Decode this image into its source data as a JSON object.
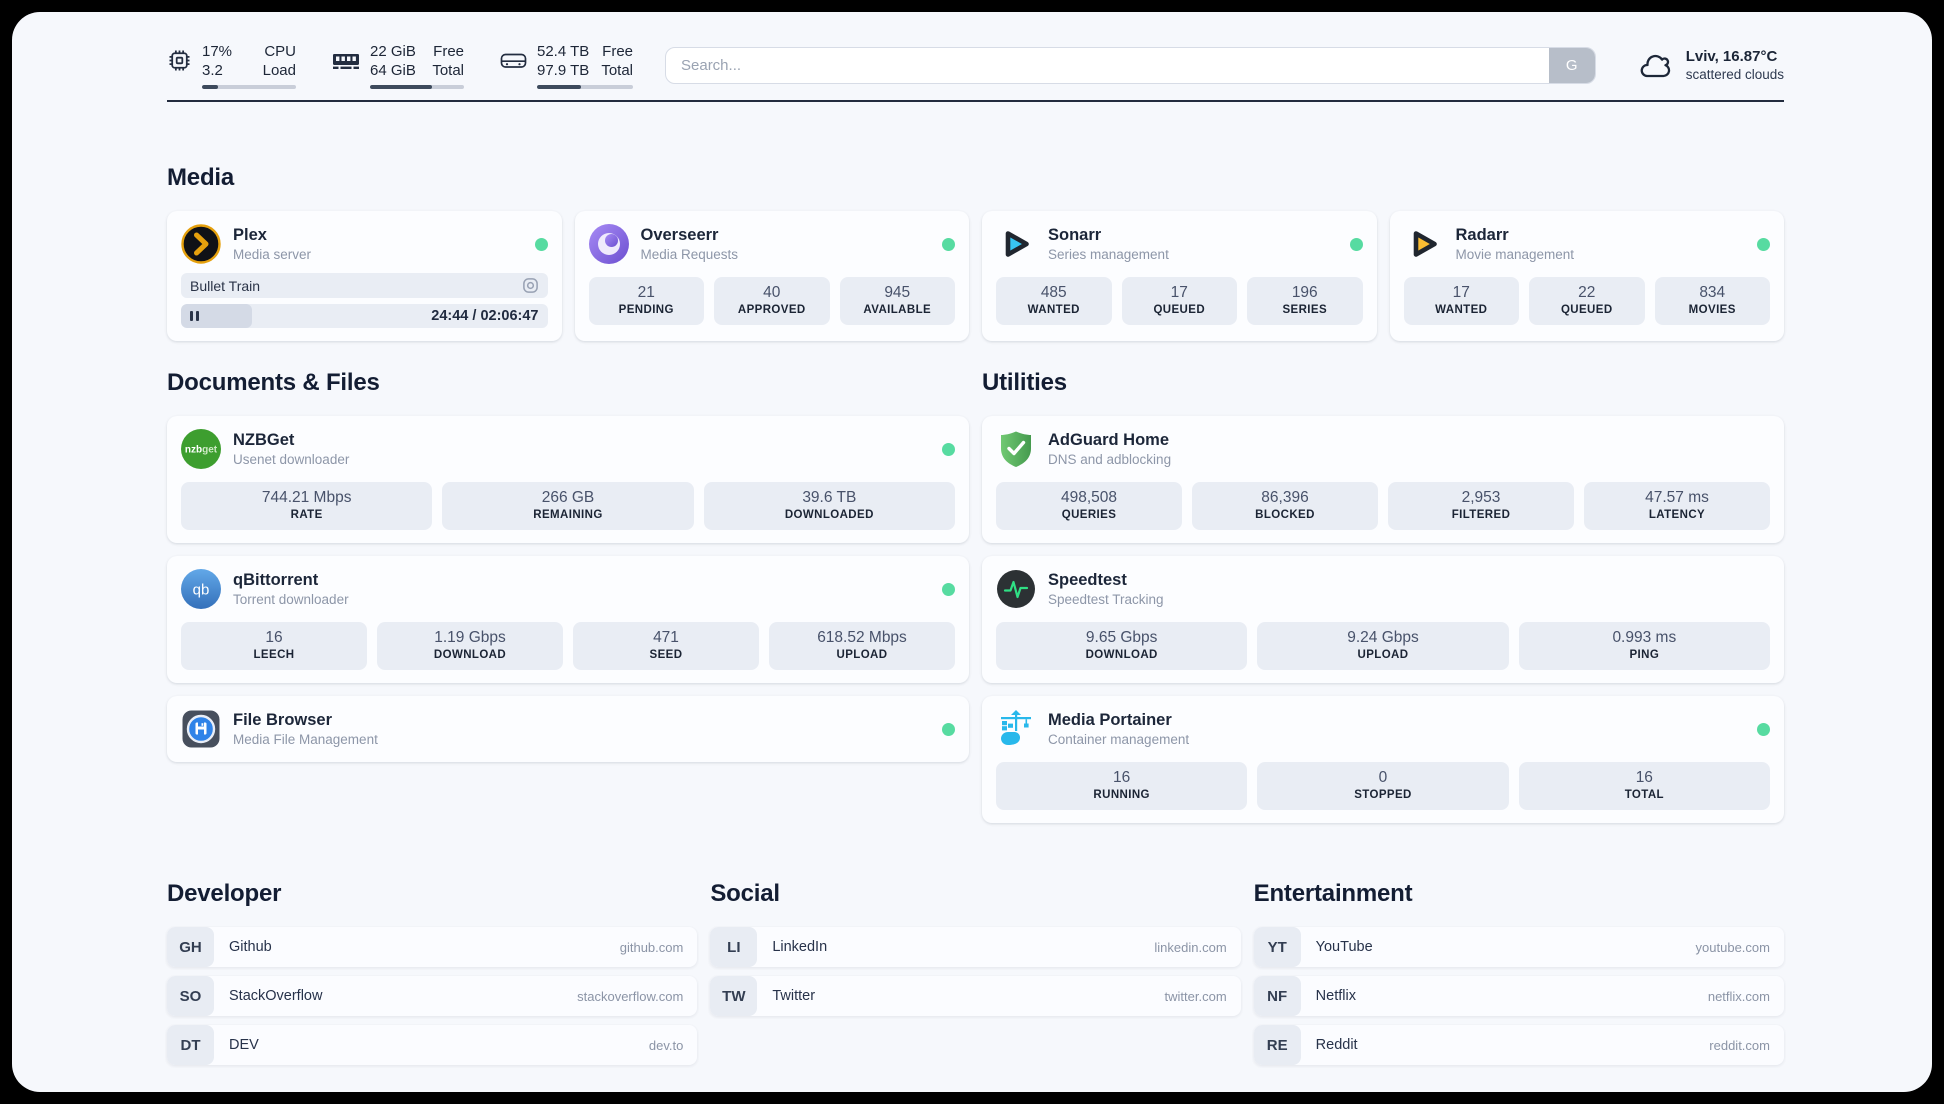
{
  "topbar": {
    "cpu": {
      "v1": "17%",
      "v2": "3.2",
      "l1": "CPU",
      "l2": "Load",
      "pct": 17
    },
    "ram": {
      "v1": "22 GiB",
      "v2": "64 GiB",
      "l1": "Free",
      "l2": "Total",
      "pct": 66
    },
    "disk": {
      "v1": "52.4 TB",
      "v2": "97.9 TB",
      "l1": "Free",
      "l2": "Total",
      "pct": 46
    },
    "search": {
      "placeholder": "Search...",
      "button_label": "G"
    },
    "weather": {
      "location": "Lviv, 16.87°C",
      "condition": "scattered clouds"
    }
  },
  "sections": {
    "media": {
      "title": "Media",
      "cards": [
        {
          "name": "Plex",
          "desc": "Media server",
          "icon": "plex-icon",
          "online": true,
          "player": {
            "track": "Bullet Train",
            "time": "24:44 / 02:06:47",
            "progress_pct": 19.5
          }
        },
        {
          "name": "Overseerr",
          "desc": "Media Requests",
          "icon": "overseerr-icon",
          "online": true,
          "stats": [
            {
              "v": "21",
              "l": "PENDING"
            },
            {
              "v": "40",
              "l": "APPROVED"
            },
            {
              "v": "945",
              "l": "AVAILABLE"
            }
          ]
        },
        {
          "name": "Sonarr",
          "desc": "Series management",
          "icon": "sonarr-icon",
          "online": true,
          "stats": [
            {
              "v": "485",
              "l": "WANTED"
            },
            {
              "v": "17",
              "l": "QUEUED"
            },
            {
              "v": "196",
              "l": "SERIES"
            }
          ]
        },
        {
          "name": "Radarr",
          "desc": "Movie management",
          "icon": "radarr-icon",
          "online": true,
          "stats": [
            {
              "v": "17",
              "l": "WANTED"
            },
            {
              "v": "22",
              "l": "QUEUED"
            },
            {
              "v": "834",
              "l": "MOVIES"
            }
          ]
        }
      ]
    },
    "documents": {
      "title": "Documents & Files",
      "cards": [
        {
          "name": "NZBGet",
          "desc": "Usenet downloader",
          "icon": "nzbget-icon",
          "online": true,
          "stats": [
            {
              "v": "744.21 Mbps",
              "l": "RATE"
            },
            {
              "v": "266 GB",
              "l": "REMAINING"
            },
            {
              "v": "39.6 TB",
              "l": "DOWNLOADED"
            }
          ]
        },
        {
          "name": "qBittorrent",
          "desc": "Torrent downloader",
          "icon": "qbittorrent-icon",
          "online": true,
          "stats": [
            {
              "v": "16",
              "l": "LEECH"
            },
            {
              "v": "1.19 Gbps",
              "l": "DOWNLOAD"
            },
            {
              "v": "471",
              "l": "SEED"
            },
            {
              "v": "618.52 Mbps",
              "l": "UPLOAD"
            }
          ]
        },
        {
          "name": "File Browser",
          "desc": "Media File Management",
          "icon": "filebrowser-icon",
          "online": true
        }
      ]
    },
    "utilities": {
      "title": "Utilities",
      "cards": [
        {
          "name": "AdGuard Home",
          "desc": "DNS and adblocking",
          "icon": "adguard-icon",
          "stats": [
            {
              "v": "498,508",
              "l": "QUERIES"
            },
            {
              "v": "86,396",
              "l": "BLOCKED"
            },
            {
              "v": "2,953",
              "l": "FILTERED"
            },
            {
              "v": "47.57 ms",
              "l": "LATENCY"
            }
          ]
        },
        {
          "name": "Speedtest",
          "desc": "Speedtest Tracking",
          "icon": "speedtest-icon",
          "stats": [
            {
              "v": "9.65 Gbps",
              "l": "DOWNLOAD"
            },
            {
              "v": "9.24 Gbps",
              "l": "UPLOAD"
            },
            {
              "v": "0.993 ms",
              "l": "PING"
            }
          ]
        },
        {
          "name": "Media Portainer",
          "desc": "Container management",
          "icon": "portainer-icon",
          "online": true,
          "stats": [
            {
              "v": "16",
              "l": "RUNNING"
            },
            {
              "v": "0",
              "l": "STOPPED"
            },
            {
              "v": "16",
              "l": "TOTAL"
            }
          ]
        }
      ]
    },
    "developer": {
      "title": "Developer",
      "links": [
        {
          "abbr": "GH",
          "name": "Github",
          "url": "github.com"
        },
        {
          "abbr": "SO",
          "name": "StackOverflow",
          "url": "stackoverflow.com"
        },
        {
          "abbr": "DT",
          "name": "DEV",
          "url": "dev.to"
        }
      ]
    },
    "social": {
      "title": "Social",
      "links": [
        {
          "abbr": "LI",
          "name": "LinkedIn",
          "url": "linkedin.com"
        },
        {
          "abbr": "TW",
          "name": "Twitter",
          "url": "twitter.com"
        }
      ]
    },
    "entertainment": {
      "title": "Entertainment",
      "links": [
        {
          "abbr": "YT",
          "name": "YouTube",
          "url": "youtube.com"
        },
        {
          "abbr": "NF",
          "name": "Netflix",
          "url": "netflix.com"
        },
        {
          "abbr": "RE",
          "name": "Reddit",
          "url": "reddit.com"
        }
      ]
    }
  },
  "icons": {
    "cpu": "chip-outline",
    "ram": "memory-stick",
    "disk": "hard-drive",
    "weather": "cloud-outline",
    "plex": "chevron-in-circle",
    "overseerr": "purple-eye-swirl",
    "sonarr": "play-triangle-cyan",
    "radarr": "play-triangle-amber",
    "nzbget": "green-circle-wordmark",
    "qbittorrent": "blue-circle-qb",
    "filebrowser": "floppy-in-circle",
    "adguard": "green-shield-check",
    "speedtest": "pulse-in-circle",
    "portainer": "crane-containers",
    "plex_track": "lens-circle",
    "player": "pause-bars"
  },
  "colors": {
    "status_online": "#57dba1",
    "background": "#f6f8fc",
    "frame": "#000000",
    "text_dark": "#1c2639",
    "divider": "#232c3e"
  }
}
